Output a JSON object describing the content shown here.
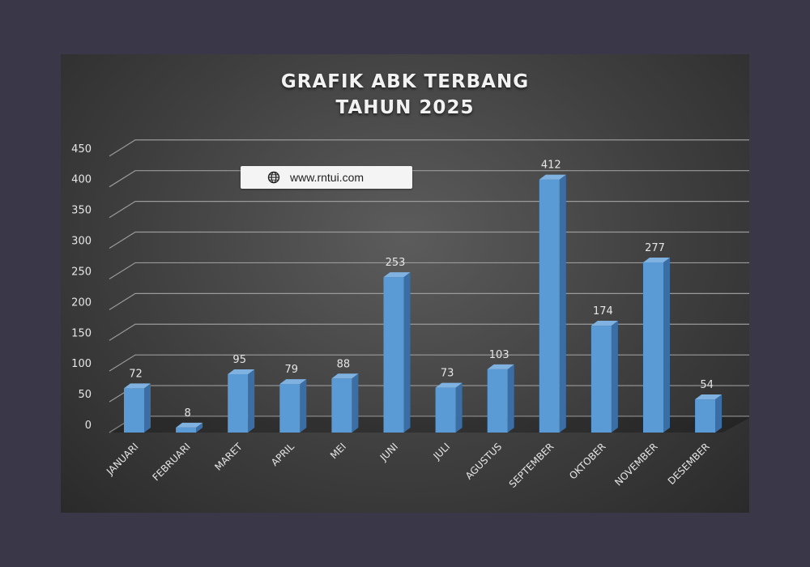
{
  "chart_data": {
    "type": "bar",
    "title_lines": [
      "GRAFIK ABK TERBANG",
      "TAHUN 2025"
    ],
    "categories": [
      "JANUARI",
      "FEBRUARI",
      "MARET",
      "APRIL",
      "MEI",
      "JUNI",
      "JULI",
      "AGUSTUS",
      "SEPTEMBER",
      "OKTOBER",
      "NOVEMBER",
      "DESEMBER"
    ],
    "values": [
      72,
      8,
      95,
      79,
      88,
      253,
      73,
      103,
      412,
      174,
      277,
      54
    ],
    "ylim": [
      0,
      450
    ],
    "yticks": [
      0,
      50,
      100,
      150,
      200,
      250,
      300,
      350,
      400,
      450
    ],
    "grid": true,
    "legend": "none",
    "bar_color": "#5b9bd5",
    "bar_side_color": "#3a6ea5",
    "bar_top_color": "#7fb2e0",
    "text_color": "#e6e6e6"
  },
  "watermark": {
    "icon": "globe-icon",
    "text": "www.rntui.com"
  }
}
